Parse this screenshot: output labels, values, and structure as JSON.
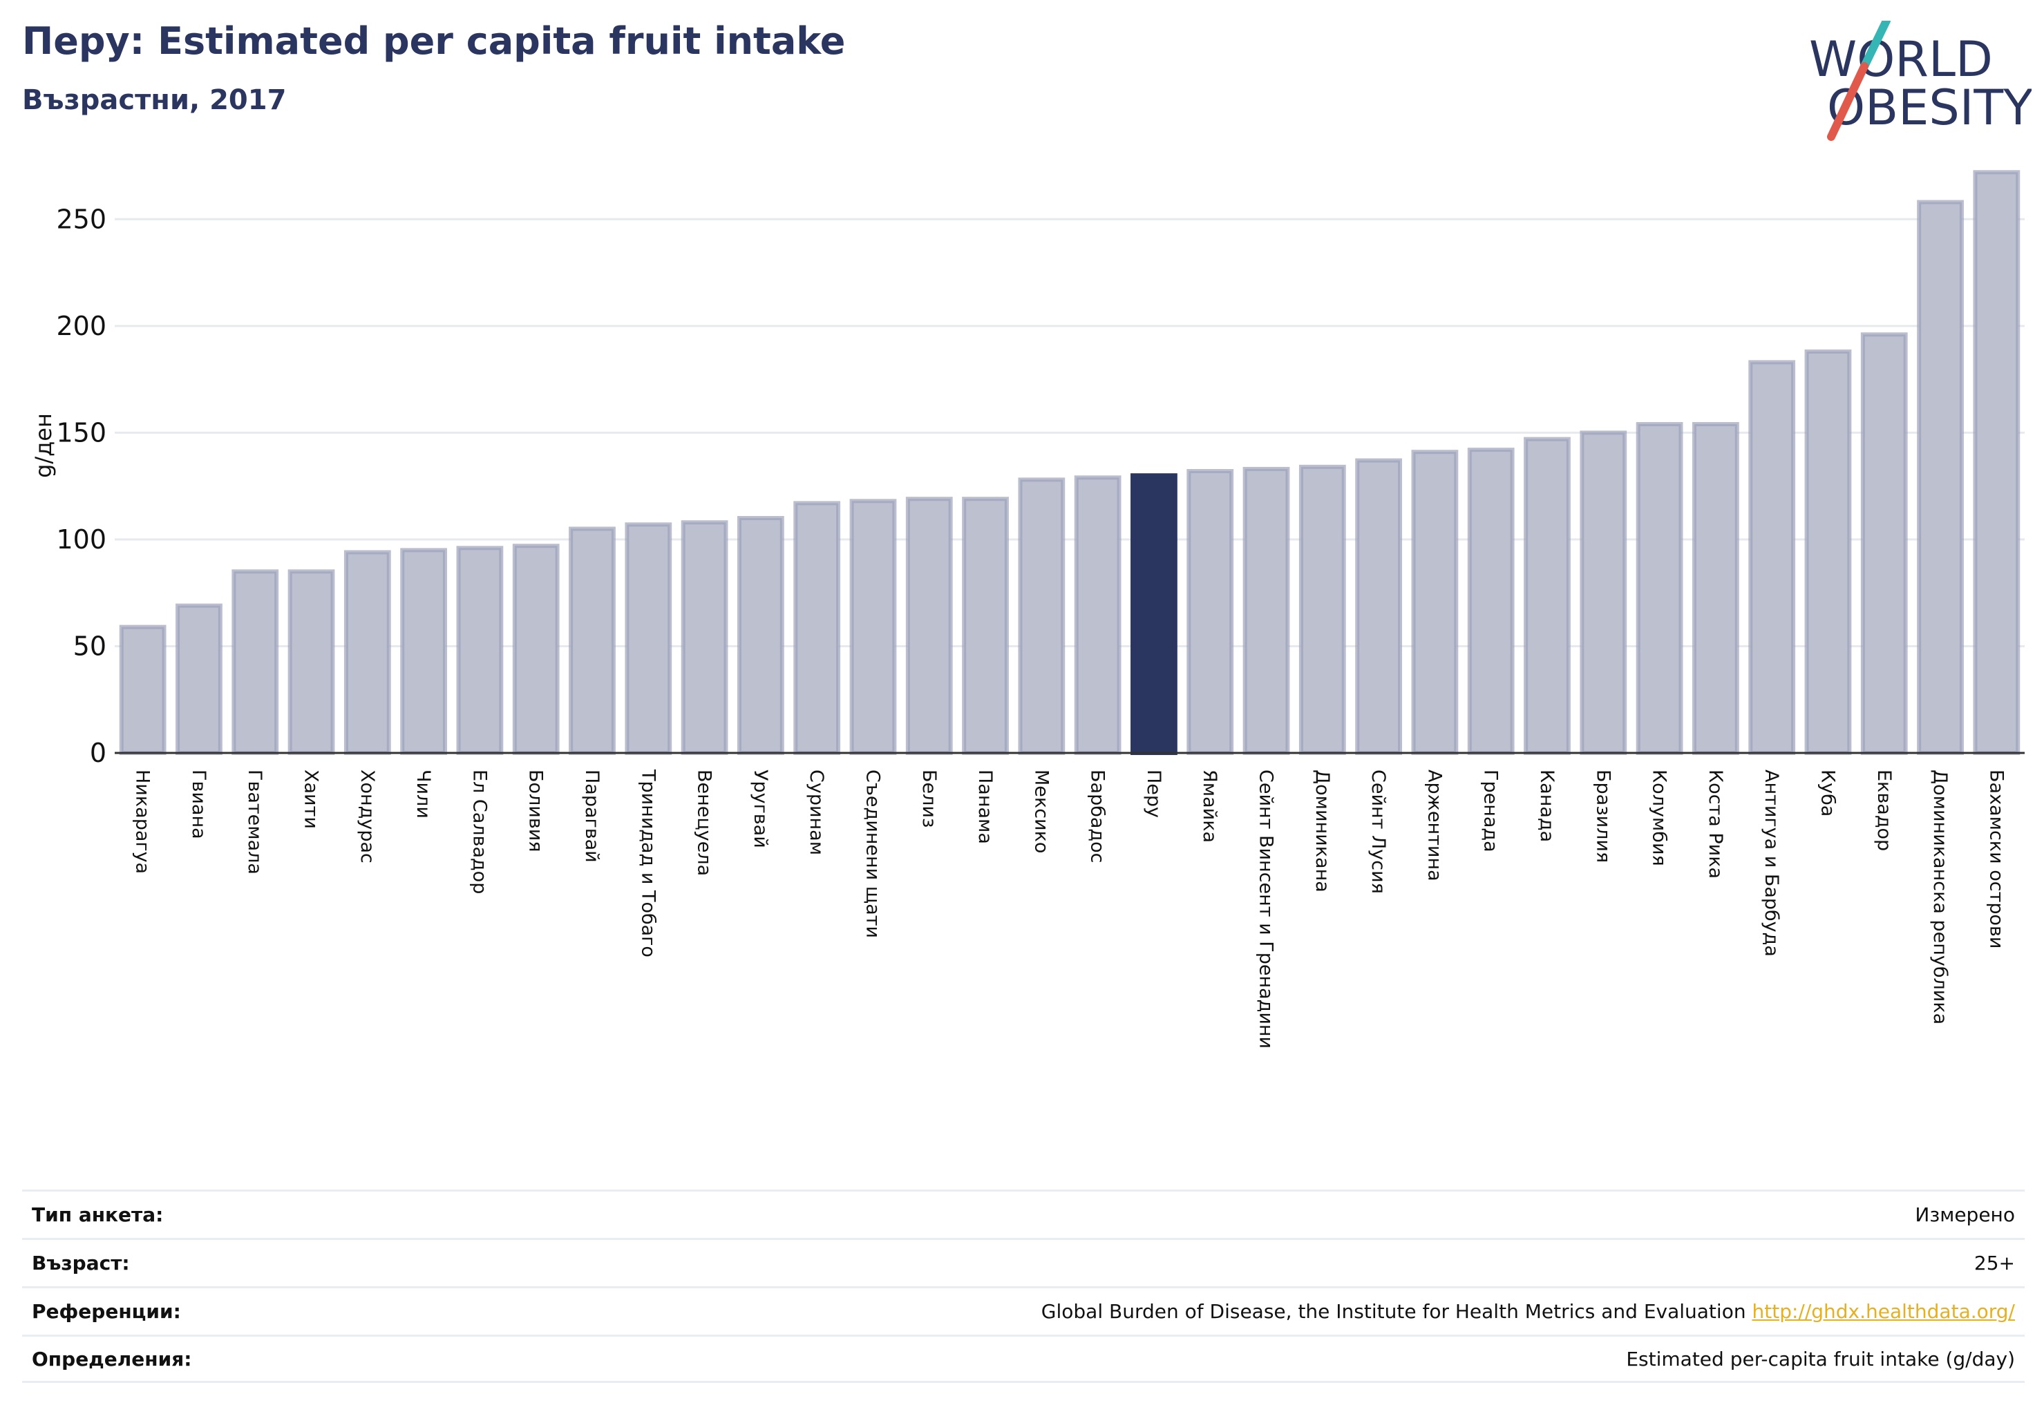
{
  "header": {
    "title": "Перу: Estimated per capita fruit intake",
    "subtitle": "Възрастни, 2017"
  },
  "logo": {
    "line1": "WORLD",
    "line2": "OBESITY",
    "color": "#2a3560",
    "slash_top": "#35b6b4",
    "slash_bottom": "#e0594b"
  },
  "chart_data": {
    "type": "bar",
    "ylabel": "g/ден",
    "ylim": [
      0,
      275
    ],
    "yticks": [
      0,
      50,
      100,
      150,
      200,
      250
    ],
    "grid": true,
    "highlight": "Перу",
    "colors": {
      "bar": "#bcc0cf",
      "bar_edge": "#9ea3bb",
      "highlight": "#2a3560"
    },
    "categories": [
      "Никарагуа",
      "Гвиана",
      "Гватемала",
      "Хаити",
      "Хондурас",
      "Чили",
      "Ел Салвадор",
      "Боливия",
      "Парагвай",
      "Тринидад и Тобаго",
      "Венецуела",
      "Уругвай",
      "Суринам",
      "Съединени щати",
      "Белиз",
      "Панама",
      "Мексико",
      "Барбадос",
      "Перу",
      "Ямайка",
      "Сейнт Винсент и Гренадини",
      "Доминикана",
      "Сейнт Лусия",
      "Аржентина",
      "Гренада",
      "Канада",
      "Бразилия",
      "Колумбия",
      "Коста Рика",
      "Антигуа и Барбуда",
      "Куба",
      "Еквадор",
      "Доминиканска република",
      "Бахамски острови"
    ],
    "values": [
      59,
      69,
      85,
      85,
      94,
      95,
      96,
      97,
      105,
      107,
      108,
      110,
      117,
      118,
      119,
      119,
      128,
      129,
      130,
      132,
      133,
      134,
      137,
      141,
      142,
      147,
      150,
      154,
      154,
      183,
      188,
      196,
      258,
      272
    ]
  },
  "meta": {
    "rows": [
      {
        "label": "Тип анкета:",
        "value": "Измерено"
      },
      {
        "label": "Възраст:",
        "value": "25+"
      },
      {
        "label": "Референции:",
        "value": "Global Burden of Disease, the Institute for Health Metrics and Evaluation",
        "link": "http://ghdx.healthdata.org/"
      },
      {
        "label": "Определения:",
        "value": "Estimated per-capita fruit intake (g/day)"
      }
    ]
  }
}
